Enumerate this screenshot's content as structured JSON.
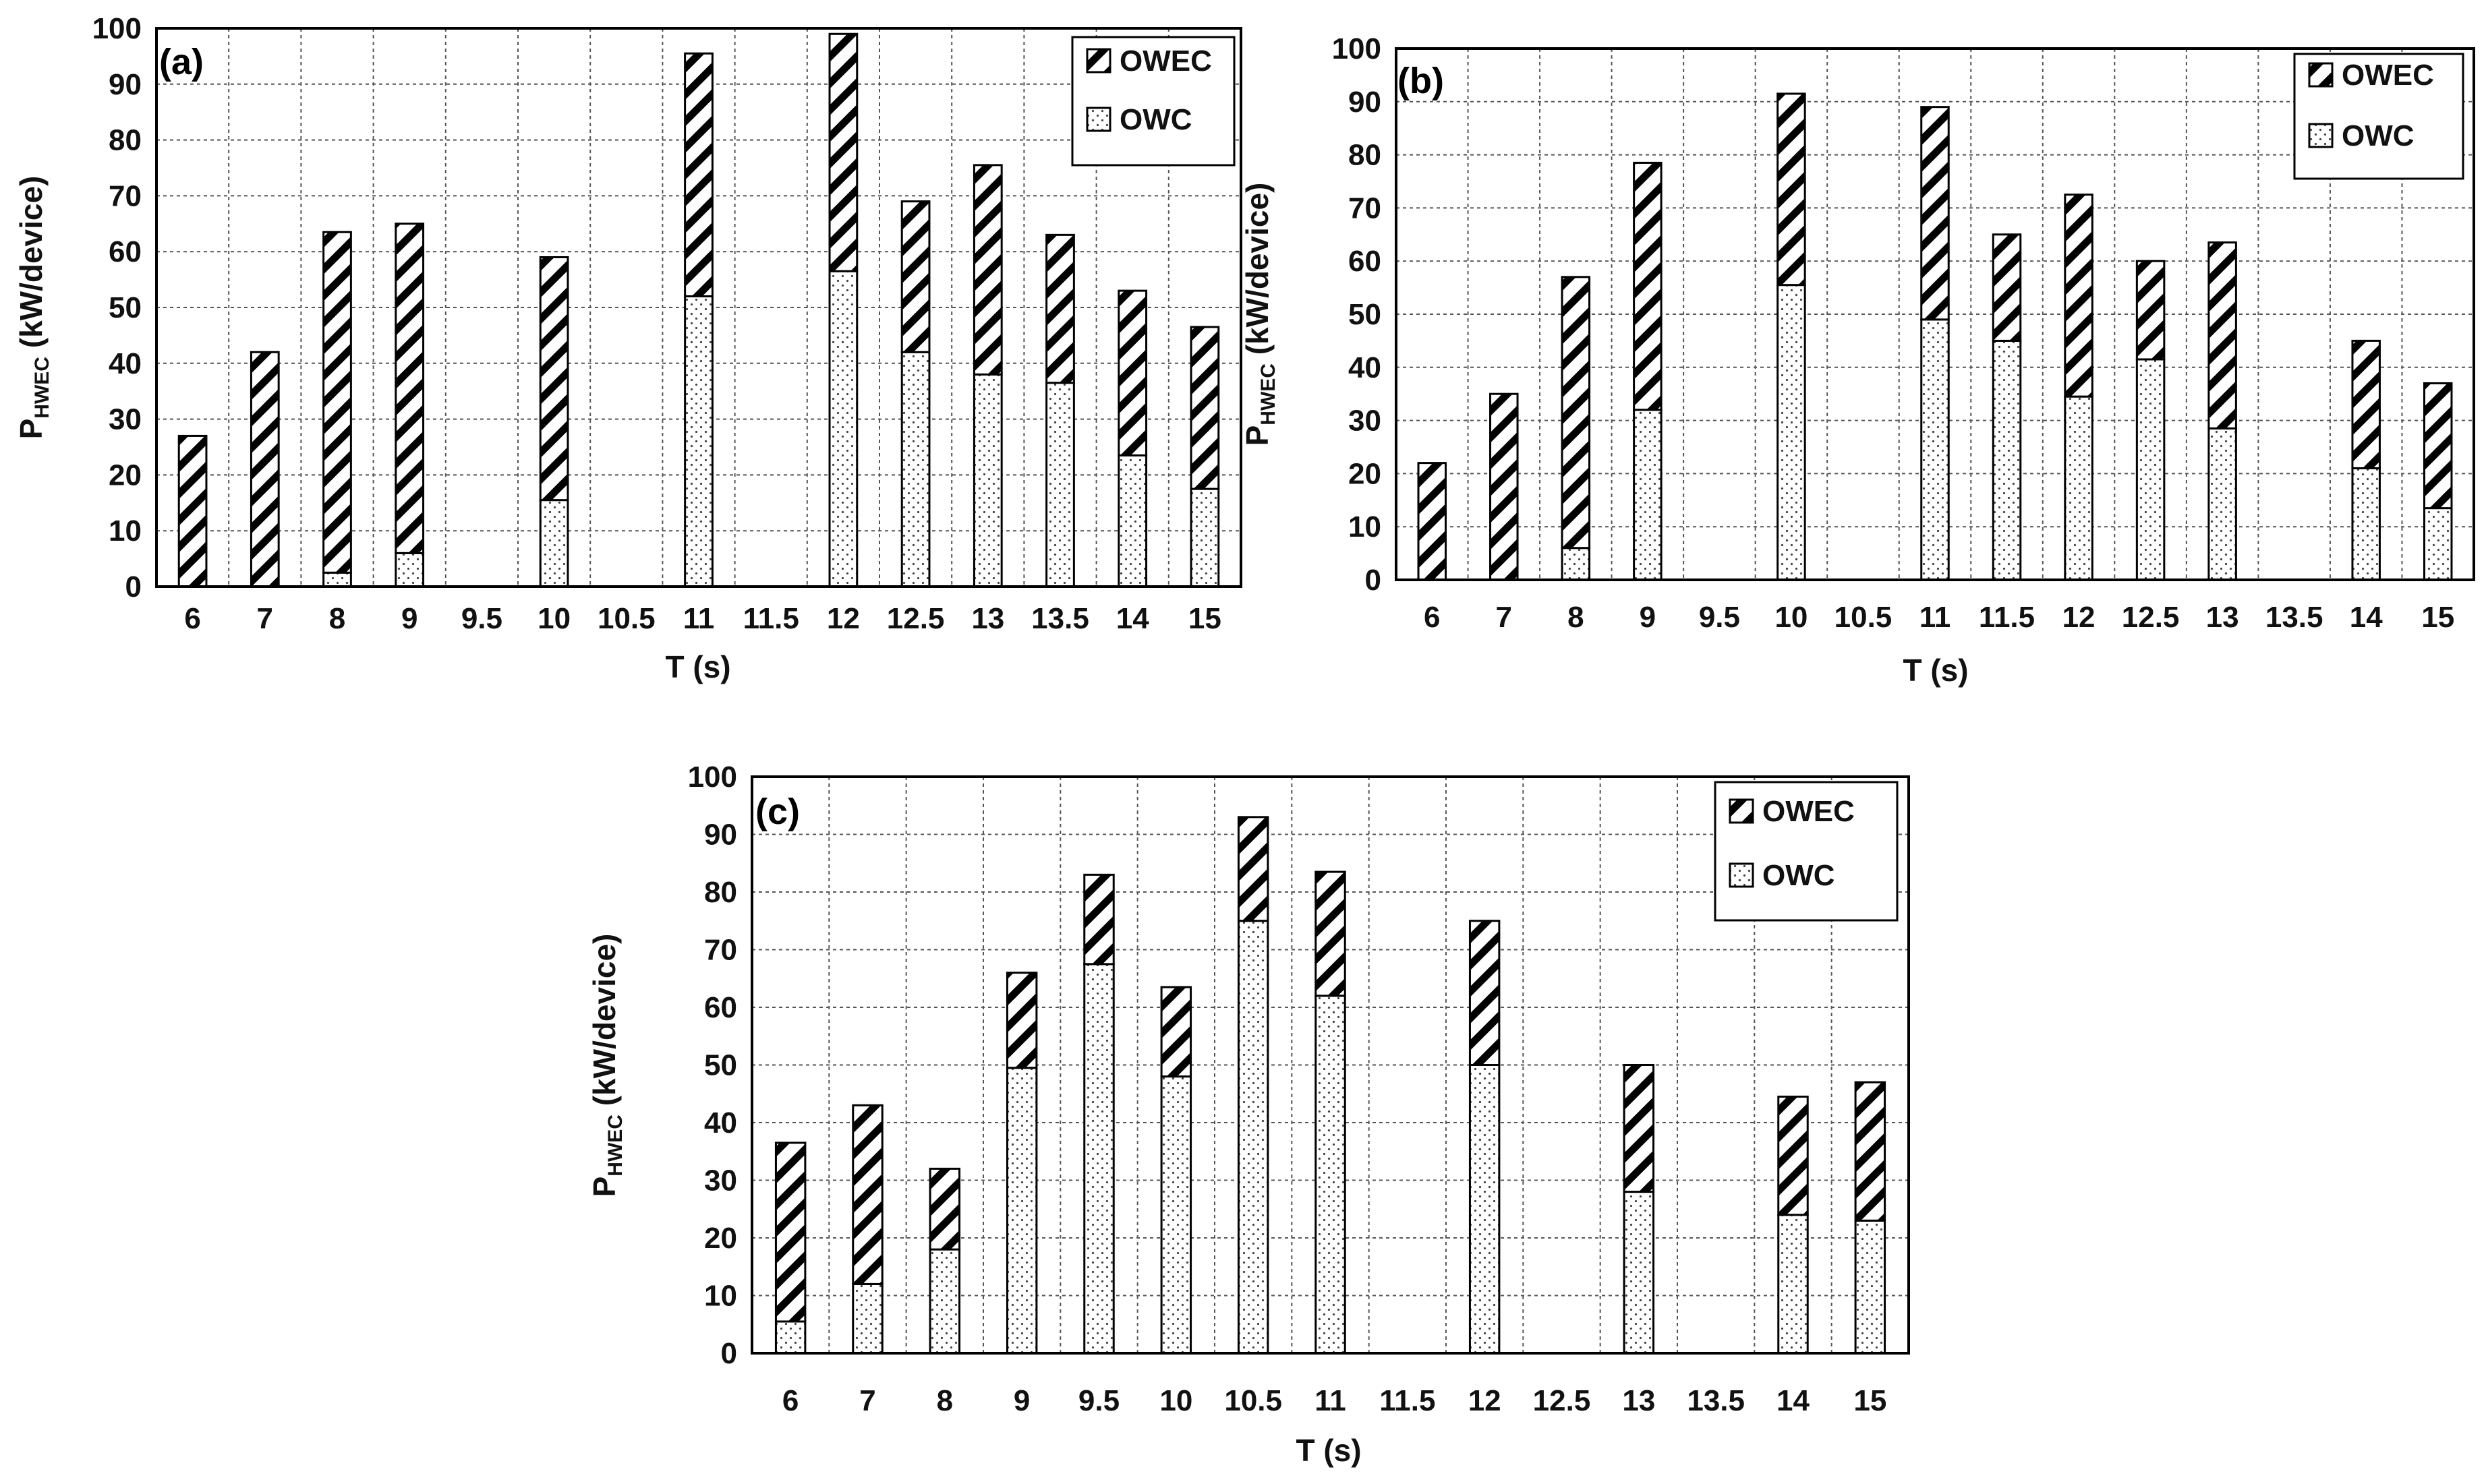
{
  "chart_data": [
    {
      "type": "bar",
      "stacked": true,
      "panel_label": "(a)",
      "categories": [
        "6",
        "7",
        "8",
        "9",
        "9.5",
        "10",
        "10.5",
        "11",
        "11.5",
        "12",
        "12.5",
        "13",
        "13.5",
        "14",
        "15"
      ],
      "series": [
        {
          "name": "OWC",
          "pattern": "dots",
          "values": [
            0,
            0,
            2.5,
            6,
            0,
            15.5,
            0,
            52,
            0,
            56.5,
            42,
            38,
            36.5,
            23.5,
            17.5
          ]
        },
        {
          "name": "OWEC",
          "pattern": "diagonal",
          "values": [
            27,
            42,
            61,
            59,
            0,
            43.5,
            0,
            43.5,
            0,
            42.5,
            27,
            37.5,
            26.5,
            29.5,
            29
          ]
        }
      ],
      "ylim": [
        0,
        100
      ],
      "yticks": [
        "0",
        "10",
        "20",
        "30",
        "40",
        "50",
        "60",
        "70",
        "80",
        "90",
        "100"
      ],
      "xlabel": "T (s)",
      "ylabel": {
        "prefix": "P",
        "subscript": "HWEC",
        "suffix": " (kW/device)"
      },
      "legend": [
        "OWEC",
        "OWC"
      ],
      "legend_position": "top-right",
      "grid": true
    },
    {
      "type": "bar",
      "stacked": true,
      "panel_label": "(b)",
      "categories": [
        "6",
        "7",
        "8",
        "9",
        "9.5",
        "10",
        "10.5",
        "11",
        "11.5",
        "12",
        "12.5",
        "13",
        "13.5",
        "14",
        "15"
      ],
      "series": [
        {
          "name": "OWC",
          "pattern": "dots",
          "values": [
            0,
            0,
            6,
            32,
            0,
            55.5,
            0,
            49,
            45,
            34.5,
            41.5,
            28.5,
            0,
            21,
            13.5
          ]
        },
        {
          "name": "OWEC",
          "pattern": "diagonal",
          "values": [
            22,
            35,
            51,
            46.5,
            0,
            36,
            0,
            40,
            20,
            38,
            18.5,
            35,
            0,
            24,
            23.5
          ]
        }
      ],
      "ylim": [
        0,
        100
      ],
      "yticks": [
        "0",
        "10",
        "20",
        "30",
        "40",
        "50",
        "60",
        "70",
        "80",
        "90",
        "100"
      ],
      "xlabel": "T (s)",
      "ylabel": {
        "prefix": "P",
        "subscript": "HWEC",
        "suffix": " (kW/device)"
      },
      "legend": [
        "OWEC",
        "OWC"
      ],
      "legend_position": "top-right",
      "grid": true
    },
    {
      "type": "bar",
      "stacked": true,
      "panel_label": "(c)",
      "categories": [
        "6",
        "7",
        "8",
        "9",
        "9.5",
        "10",
        "10.5",
        "11",
        "11.5",
        "12",
        "12.5",
        "13",
        "13.5",
        "14",
        "15"
      ],
      "series": [
        {
          "name": "OWC",
          "pattern": "dots",
          "values": [
            5.5,
            12,
            18,
            49.5,
            67.5,
            48,
            75,
            62,
            0,
            50,
            0,
            28,
            0,
            24,
            23
          ]
        },
        {
          "name": "OWEC",
          "pattern": "diagonal",
          "values": [
            31,
            31,
            14,
            16.5,
            15.5,
            15.5,
            18,
            21.5,
            0,
            25,
            0,
            22,
            0,
            20.5,
            24
          ]
        }
      ],
      "ylim": [
        0,
        100
      ],
      "yticks": [
        "0",
        "10",
        "20",
        "30",
        "40",
        "50",
        "60",
        "70",
        "80",
        "90",
        "100"
      ],
      "xlabel": "T (s)",
      "ylabel": {
        "prefix": "P",
        "subscript": "HWEC",
        "suffix": " (kW/device)"
      },
      "legend": [
        "OWEC",
        "OWC"
      ],
      "legend_position": "top-right",
      "grid": true
    }
  ]
}
